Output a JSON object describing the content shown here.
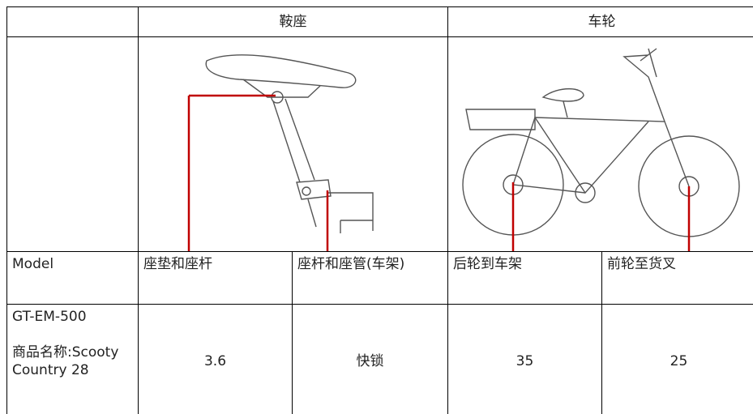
{
  "table": {
    "header": {
      "saddle": "鞍座",
      "wheel": "车轮"
    },
    "columns": [
      "Model",
      "座垫和座杆",
      "座杆和座管(车架)",
      "后轮到车架",
      "前轮至货叉"
    ],
    "model": {
      "code": "GT-EM-500",
      "name": "商品名称:Scooty Country 28"
    },
    "values": [
      "3.6",
      "快锁",
      "35",
      "25"
    ]
  }
}
